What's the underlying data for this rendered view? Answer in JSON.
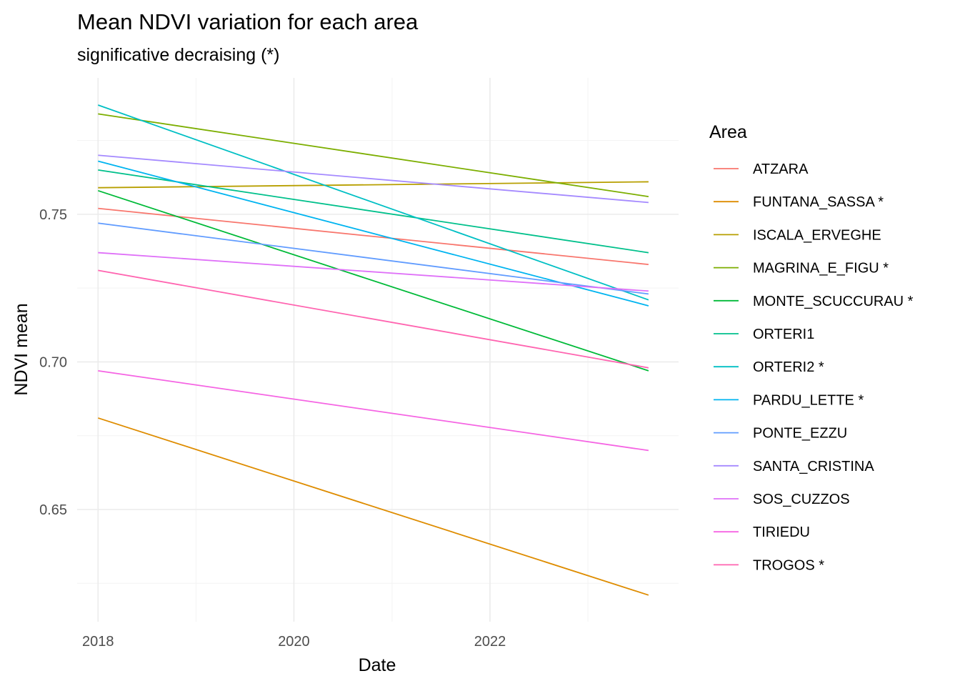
{
  "chart_data": {
    "type": "line",
    "title": "Mean NDVI variation for each area",
    "subtitle": "significative decraising (*)",
    "xlabel": "Date",
    "ylabel": "NDVI mean",
    "x_ticks": [
      "2018",
      "2020",
      "2022"
    ],
    "y_ticks": [
      "0.65",
      "0.70",
      "0.75"
    ],
    "xlim": [
      "2017-10-15",
      "2023-12-05"
    ],
    "ylim": [
      0.612,
      0.7962
    ],
    "x_start": "2018-01-01",
    "x_end": "2023-08-15",
    "grid": true,
    "legend": {
      "title": "Area",
      "position": "right"
    },
    "series": [
      {
        "name": "ATZARA",
        "color": "#F8766D",
        "values": [
          0.752,
          0.733
        ]
      },
      {
        "name": "FUNTANA_SASSA *",
        "color": "#DE8C00",
        "values": [
          0.681,
          0.621
        ]
      },
      {
        "name": "ISCALA_ERVEGHE",
        "color": "#B79F00",
        "values": [
          0.759,
          0.761
        ]
      },
      {
        "name": "MAGRINA_E_FIGU *",
        "color": "#7CAE00",
        "values": [
          0.784,
          0.756
        ]
      },
      {
        "name": "MONTE_SCUCCURAU *",
        "color": "#00BA38",
        "values": [
          0.758,
          0.697
        ]
      },
      {
        "name": "ORTERI1",
        "color": "#00C08B",
        "values": [
          0.765,
          0.737
        ]
      },
      {
        "name": "ORTERI2 *",
        "color": "#00BFC4",
        "values": [
          0.787,
          0.721
        ]
      },
      {
        "name": "PARDU_LETTE *",
        "color": "#00B4F0",
        "values": [
          0.768,
          0.719
        ]
      },
      {
        "name": "PONTE_EZZU",
        "color": "#619CFF",
        "values": [
          0.747,
          0.723
        ]
      },
      {
        "name": "SANTA_CRISTINA",
        "color": "#A58AFF",
        "values": [
          0.77,
          0.754
        ]
      },
      {
        "name": "SOS_CUZZOS",
        "color": "#DF70F8",
        "values": [
          0.737,
          0.724
        ]
      },
      {
        "name": "TIRIEDU",
        "color": "#F564E3",
        "values": [
          0.697,
          0.67
        ]
      },
      {
        "name": "TROGOS *",
        "color": "#FF64B0",
        "values": [
          0.731,
          0.698
        ]
      }
    ]
  }
}
